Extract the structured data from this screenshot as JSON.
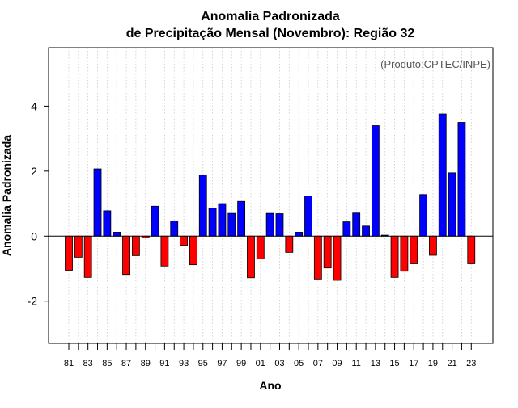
{
  "chart_data": {
    "type": "bar",
    "title": "Anomalia Padronizada",
    "subtitle": "de Precipitação Mensal (Novembro): Região 32",
    "annotation": "(Produto:CPTEC/INPE)",
    "xlabel": "Ano",
    "ylabel": "Anomalia Padronizada",
    "ylim": [
      -3.3,
      5.8
    ],
    "yticks": [
      -2,
      0,
      2,
      4
    ],
    "xtick_labels": [
      "81",
      "83",
      "85",
      "87",
      "89",
      "91",
      "93",
      "95",
      "97",
      "99",
      "01",
      "03",
      "05",
      "07",
      "09",
      "11",
      "13",
      "15",
      "17",
      "19",
      "21",
      "23"
    ],
    "grid": true,
    "positive_color": "#0000ff",
    "negative_color": "#ff0000",
    "categories": [
      "1981",
      "1982",
      "1983",
      "1984",
      "1985",
      "1986",
      "1987",
      "1988",
      "1989",
      "1990",
      "1991",
      "1992",
      "1993",
      "1994",
      "1995",
      "1996",
      "1997",
      "1998",
      "1999",
      "2000",
      "2001",
      "2002",
      "2003",
      "2004",
      "2005",
      "2006",
      "2007",
      "2008",
      "2009",
      "2010",
      "2011",
      "2012",
      "2013",
      "2014",
      "2015",
      "2016",
      "2017",
      "2018",
      "2019",
      "2020",
      "2021",
      "2022",
      "2023"
    ],
    "values": [
      -1.05,
      -0.65,
      -1.27,
      2.07,
      0.78,
      0.12,
      -1.18,
      -0.6,
      -0.05,
      0.92,
      -0.92,
      0.47,
      -0.28,
      -0.88,
      1.88,
      0.86,
      1.0,
      0.7,
      1.07,
      -1.28,
      -0.7,
      0.7,
      0.69,
      -0.5,
      0.12,
      1.24,
      -1.32,
      -0.98,
      -1.36,
      0.44,
      0.71,
      0.31,
      3.4,
      0.03,
      -1.27,
      -1.08,
      -0.85,
      1.28,
      -0.59,
      3.76,
      1.95,
      3.5,
      -0.85
    ]
  }
}
